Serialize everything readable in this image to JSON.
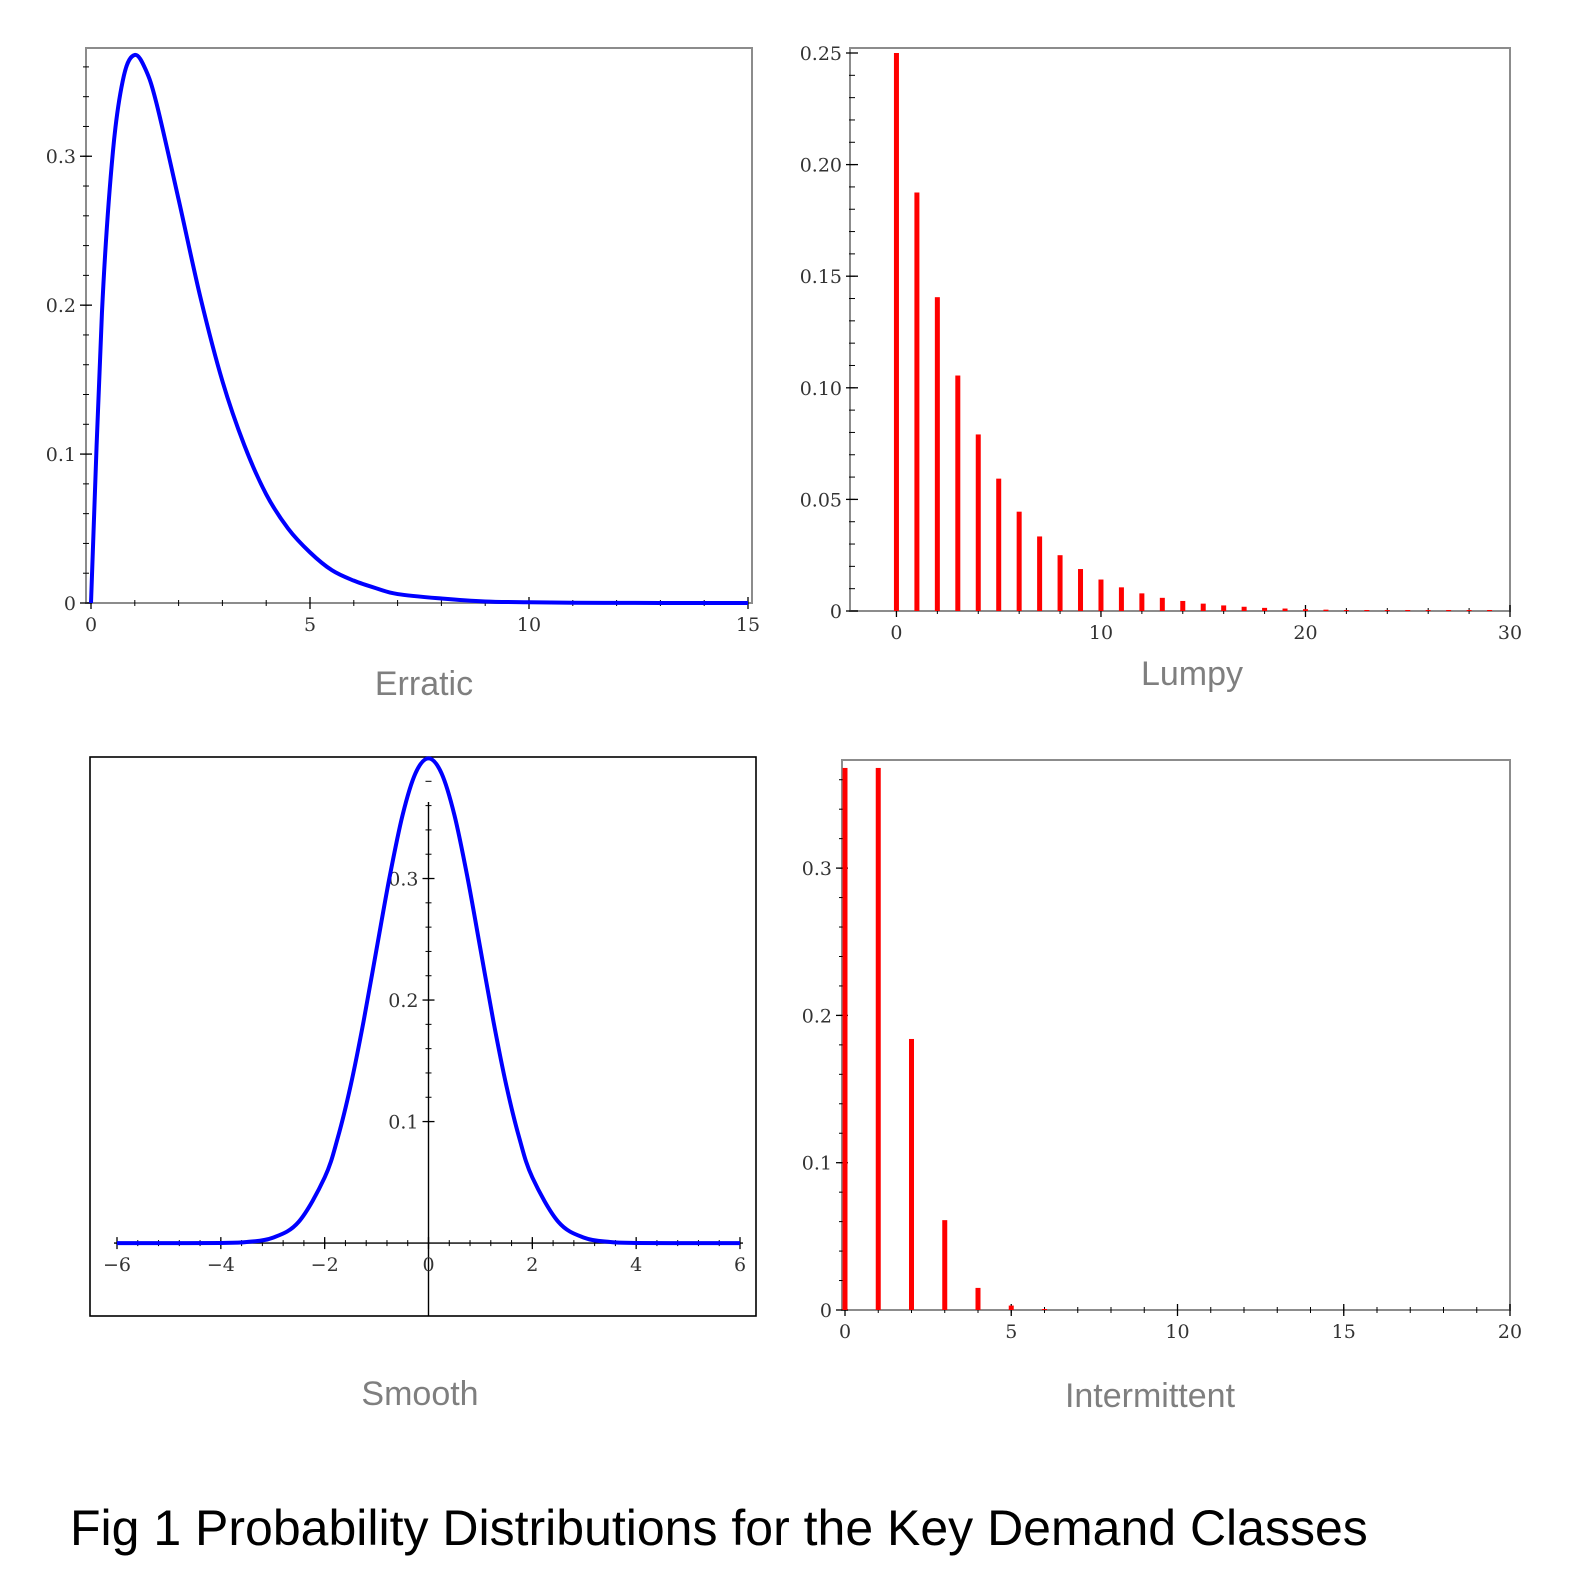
{
  "figure": {
    "caption": "Fig 1   Probability Distributions for the Key Demand Classes"
  },
  "chart_data": [
    {
      "type": "line",
      "label": "Erratic",
      "xlim": [
        0,
        15
      ],
      "ylim": [
        0,
        0.37
      ],
      "xticks": [
        0,
        5,
        10,
        15
      ],
      "yticks": [
        0,
        0.1,
        0.2,
        0.3
      ],
      "ytick_labels": [
        "0",
        "0.1",
        "0.2",
        "0.3"
      ],
      "color": "#0000ff",
      "series": [
        {
          "x": [
            0,
            0.25,
            0.5,
            0.75,
            1,
            1.25,
            1.5,
            2,
            2.5,
            3,
            3.5,
            4,
            4.5,
            5,
            5.5,
            6,
            6.5,
            7,
            8,
            9,
            10,
            11,
            12,
            13,
            14,
            15
          ],
          "y": [
            0,
            0.195,
            0.303,
            0.354,
            0.368,
            0.358,
            0.335,
            0.271,
            0.205,
            0.149,
            0.106,
            0.073,
            0.05,
            0.034,
            0.022,
            0.015,
            0.01,
            0.006,
            0.003,
            0.001,
            0.0005,
            0.0002,
            0.0001,
            0,
            0,
            0
          ]
        }
      ]
    },
    {
      "type": "bar",
      "label": "Lumpy",
      "xlim": [
        -1,
        30
      ],
      "ylim": [
        0,
        0.25
      ],
      "xticks": [
        0,
        10,
        20,
        30
      ],
      "yticks": [
        0,
        0.05,
        0.1,
        0.15,
        0.2,
        0.25
      ],
      "ytick_labels": [
        "0",
        "0.05",
        "0.10",
        "0.15",
        "0.20",
        "0.25"
      ],
      "color": "#ff0000",
      "x": [
        0,
        1,
        2,
        3,
        4,
        5,
        6,
        7,
        8,
        9,
        10,
        11,
        12,
        13,
        14,
        15,
        16,
        17,
        18,
        19,
        20,
        21,
        22,
        23,
        24,
        25,
        26,
        27,
        28,
        29
      ],
      "values": [
        0.25,
        0.1875,
        0.1406,
        0.1055,
        0.0791,
        0.0593,
        0.0445,
        0.0334,
        0.025,
        0.0188,
        0.0141,
        0.0106,
        0.0079,
        0.0059,
        0.0045,
        0.0033,
        0.0025,
        0.0019,
        0.0014,
        0.0011,
        0.0008,
        0.0006,
        0.0004,
        0.0003,
        0.0003,
        0.0002,
        0.0001,
        0.0001,
        0.0001,
        0.0001
      ]
    },
    {
      "type": "line",
      "label": "Smooth",
      "xlim": [
        -6,
        6
      ],
      "ylim": [
        -0.06,
        0.4
      ],
      "xticks": [
        -6,
        -4,
        -2,
        0,
        2,
        4,
        6
      ],
      "xtick_labels": [
        "−6",
        "−4",
        "−2",
        "0",
        "2",
        "4",
        "6"
      ],
      "yticks": [
        0.1,
        0.2,
        0.3
      ],
      "ytick_labels": [
        "0.1",
        "0.2",
        "0.3"
      ],
      "color": "#0000ff",
      "series": [
        {
          "x": [
            -6,
            -5,
            -4,
            -3.5,
            -3,
            -2.5,
            -2,
            -1.75,
            -1.5,
            -1.25,
            -1,
            -0.75,
            -0.5,
            -0.25,
            0,
            0.25,
            0.5,
            0.75,
            1,
            1.25,
            1.5,
            1.75,
            2,
            2.5,
            3,
            3.5,
            4,
            5,
            6
          ],
          "y": [
            0,
            0,
            0.0001,
            0.0009,
            0.0044,
            0.0175,
            0.054,
            0.0863,
            0.1295,
            0.1826,
            0.242,
            0.3011,
            0.3521,
            0.3867,
            0.3989,
            0.3867,
            0.3521,
            0.3011,
            0.242,
            0.1826,
            0.1295,
            0.0863,
            0.054,
            0.0175,
            0.0044,
            0.0009,
            0.0001,
            0,
            0
          ]
        }
      ]
    },
    {
      "type": "bar",
      "label": "Intermittent",
      "xlim": [
        0,
        20
      ],
      "ylim": [
        0,
        0.37
      ],
      "xticks": [
        0,
        5,
        10,
        15,
        20
      ],
      "yticks": [
        0,
        0.1,
        0.2,
        0.3
      ],
      "ytick_labels": [
        "0",
        "0.1",
        "0.2",
        "0.3"
      ],
      "color": "#ff0000",
      "x": [
        0,
        1,
        2,
        3,
        4,
        5,
        6
      ],
      "values": [
        0.368,
        0.368,
        0.184,
        0.061,
        0.015,
        0.003,
        0.0005
      ]
    }
  ]
}
